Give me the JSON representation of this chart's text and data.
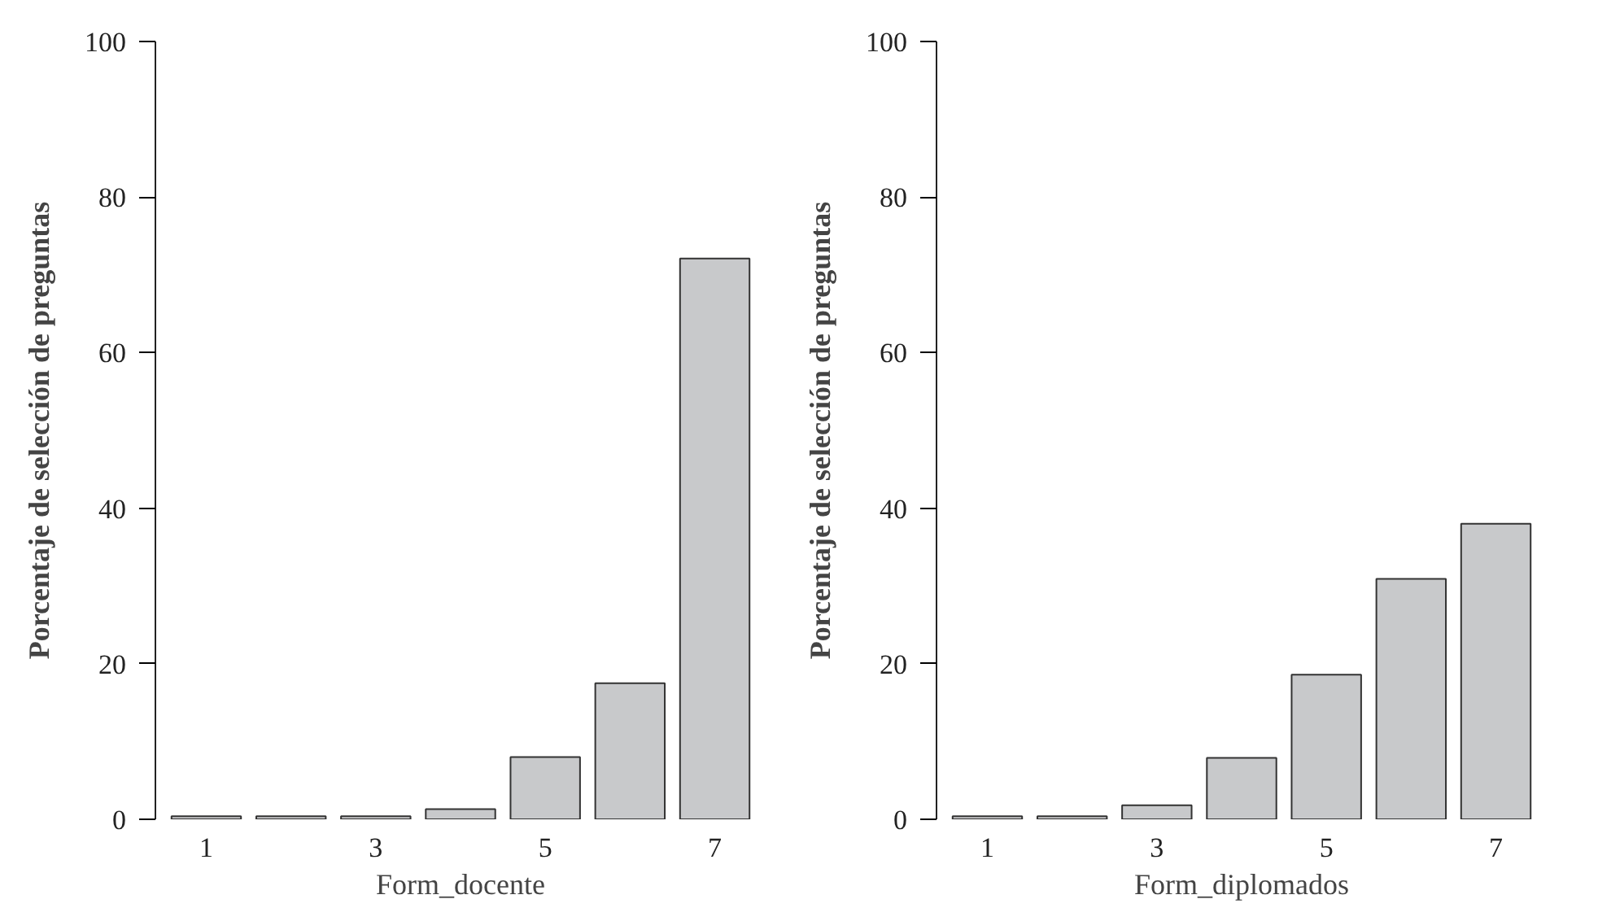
{
  "chart_data": [
    {
      "type": "bar",
      "xlabel": "Form_docente",
      "ylabel": "Porcentaje de selección de preguntas",
      "categories": [
        "1",
        null,
        "3",
        null,
        "5",
        null,
        "7"
      ],
      "values": [
        0.4,
        0.4,
        0.4,
        1.3,
        8.0,
        17.5,
        72.1
      ],
      "color": "#c8c9cb",
      "ylim": [
        0,
        100
      ],
      "yticks": [
        0,
        20,
        40,
        60,
        80,
        100
      ],
      "grid": false
    },
    {
      "type": "bar",
      "xlabel": "Form_diplomados",
      "ylabel": "Porcentaje de selección de preguntas",
      "categories": [
        "1",
        null,
        "3",
        null,
        "5",
        null,
        "7"
      ],
      "values": [
        0.4,
        0.4,
        1.8,
        7.9,
        18.6,
        30.9,
        38.0
      ],
      "color": "#c8c9cb",
      "ylim": [
        0,
        100
      ],
      "yticks": [
        0,
        20,
        40,
        60,
        80,
        100
      ],
      "grid": false
    }
  ]
}
